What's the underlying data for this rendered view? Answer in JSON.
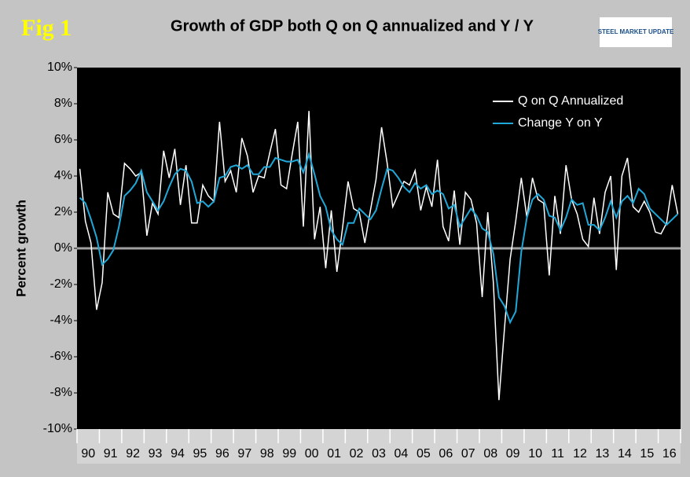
{
  "chart_data": {
    "type": "line",
    "title": "Growth of GDP both Q on Q annualized and Y / Y",
    "fig_label": "Fig 1",
    "logo": "STEEL MARKET UPDATE",
    "y_label": "Percent growth",
    "categories": [
      null,
      "90",
      null,
      null,
      null,
      "91",
      null,
      null,
      null,
      "92",
      null,
      null,
      null,
      "93",
      null,
      null,
      null,
      "94",
      null,
      null,
      null,
      "95",
      null,
      null,
      null,
      "96",
      null,
      null,
      null,
      "97",
      null,
      null,
      null,
      "98",
      null,
      null,
      null,
      "99",
      null,
      null,
      null,
      "00",
      null,
      null,
      null,
      "01",
      null,
      null,
      null,
      "02",
      null,
      null,
      null,
      "03",
      null,
      null,
      null,
      "04",
      null,
      null,
      null,
      "05",
      null,
      null,
      null,
      "06",
      null,
      null,
      null,
      "07",
      null,
      null,
      null,
      "08",
      null,
      null,
      null,
      "09",
      null,
      null,
      null,
      "10",
      null,
      null,
      null,
      "11",
      null,
      null,
      null,
      "12",
      null,
      null,
      null,
      "13",
      null,
      null,
      null,
      "14",
      null,
      null,
      null,
      "15",
      null,
      null,
      null,
      "16",
      null,
      null
    ],
    "series": [
      {
        "name": "Q on Q Annualized",
        "color": "#ffffff",
        "values": [
          4.4,
          1.5,
          0.3,
          -3.4,
          -1.9,
          3.1,
          1.9,
          1.7,
          4.7,
          4.4,
          4.0,
          4.2,
          0.7,
          2.5,
          1.9,
          5.4,
          3.9,
          5.5,
          2.4,
          4.6,
          1.4,
          1.4,
          3.5,
          2.9,
          2.6,
          7.0,
          3.7,
          4.3,
          3.1,
          6.1,
          5.1,
          3.1,
          4.0,
          3.9,
          5.3,
          6.6,
          3.5,
          3.3,
          5.2,
          7.0,
          1.2,
          7.6,
          0.5,
          2.3,
          -1.1,
          2.1,
          -1.3,
          1.1,
          3.7,
          2.2,
          2.0,
          0.3,
          2.1,
          3.8,
          6.7,
          4.7,
          2.3,
          3.0,
          3.7,
          3.5,
          4.3,
          2.1,
          3.4,
          2.3,
          4.9,
          1.2,
          0.4,
          3.2,
          0.2,
          3.1,
          2.7,
          1.4,
          -2.7,
          2.0,
          -1.9,
          -8.4,
          -4.4,
          -0.6,
          1.5,
          3.9,
          1.7,
          3.9,
          2.7,
          2.5,
          -1.5,
          2.9,
          0.8,
          4.6,
          2.7,
          1.9,
          0.5,
          0.1,
          2.8,
          0.8,
          3.1,
          4.0,
          -1.2,
          4.0,
          5.0,
          2.3,
          2.0,
          2.6,
          2.0,
          0.9,
          0.8,
          1.4,
          3.5,
          1.9
        ]
      },
      {
        "name": "Change Y on Y",
        "color": "#1fa8d8",
        "values": [
          2.8,
          2.5,
          1.6,
          0.6,
          -0.9,
          -0.6,
          -0.1,
          1.2,
          2.9,
          3.2,
          3.6,
          4.3,
          3.1,
          2.6,
          2.1,
          2.6,
          3.4,
          4.1,
          4.4,
          4.3,
          3.7,
          2.5,
          2.6,
          2.3,
          2.6,
          3.9,
          4.0,
          4.5,
          4.6,
          4.4,
          4.6,
          4.1,
          4.1,
          4.5,
          4.5,
          5.0,
          4.9,
          4.8,
          4.8,
          4.9,
          4.2,
          5.2,
          4.1,
          2.9,
          2.3,
          1.0,
          0.5,
          0.2,
          1.4,
          1.4,
          2.2,
          1.9,
          1.6,
          2.1,
          3.3,
          4.4,
          4.3,
          3.9,
          3.4,
          3.1,
          3.6,
          3.3,
          3.5,
          3.0,
          3.2,
          3.0,
          2.2,
          2.4,
          1.2,
          1.7,
          2.2,
          1.8,
          1.1,
          0.9,
          -0.3,
          -2.7,
          -3.2,
          -4.1,
          -3.5,
          -0.2,
          1.7,
          2.7,
          3.0,
          2.7,
          1.8,
          1.7,
          1.0,
          1.7,
          2.7,
          2.4,
          2.5,
          1.3,
          1.3,
          1.0,
          1.7,
          2.6,
          1.7,
          2.6,
          2.9,
          2.5,
          3.3,
          3.0,
          2.2,
          1.9,
          1.6,
          1.3,
          1.6,
          1.9
        ]
      }
    ],
    "ylim": [
      -10,
      10
    ],
    "yticks": [
      {
        "value": -10,
        "label": "-10%"
      },
      {
        "value": -8,
        "label": "-8%"
      },
      {
        "value": -6,
        "label": "-6%"
      },
      {
        "value": -4,
        "label": "-4%"
      },
      {
        "value": -2,
        "label": "-2%"
      },
      {
        "value": 0,
        "label": "0%"
      },
      {
        "value": 2,
        "label": "2%"
      },
      {
        "value": 4,
        "label": "4%"
      },
      {
        "value": 6,
        "label": "6%"
      },
      {
        "value": 8,
        "label": "8%"
      },
      {
        "value": 10,
        "label": "10%"
      }
    ],
    "grid": false,
    "legend": "upper right"
  }
}
